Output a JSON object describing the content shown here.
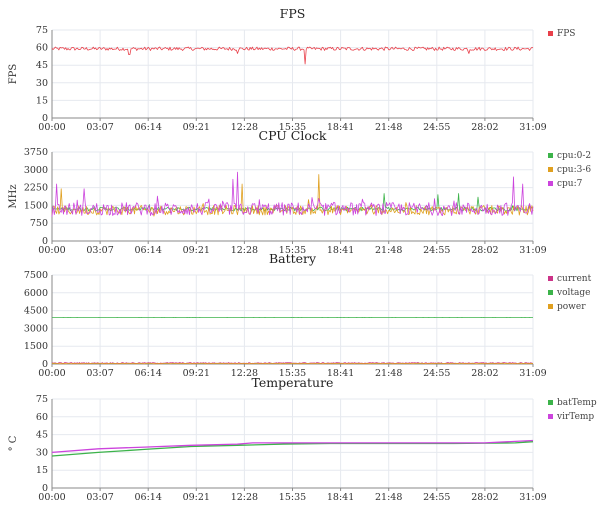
{
  "chart_data": [
    {
      "type": "line",
      "title": "FPS",
      "ylabel": "FPS",
      "ylim": [
        0,
        75
      ],
      "yticks": [
        0,
        15,
        30,
        45,
        60,
        75
      ],
      "xticks": [
        "00:00",
        "03:07",
        "06:14",
        "09:21",
        "12:28",
        "15:35",
        "18:41",
        "21:48",
        "24:55",
        "28:02",
        "31:09"
      ],
      "grid": true,
      "legend_position": "right",
      "series": [
        {
          "name": "FPS",
          "color": "#e8404a",
          "base": 59,
          "noise": 1.5,
          "spikes": [
            [
              16.4,
              46
            ],
            [
              5.0,
              54
            ],
            [
              12.0,
              55
            ],
            [
              27.0,
              55
            ]
          ]
        }
      ]
    },
    {
      "type": "line",
      "title": "CPU Clock",
      "ylabel": "MHz",
      "ylim": [
        0,
        3750
      ],
      "yticks": [
        0,
        750,
        1500,
        2250,
        3000,
        3750
      ],
      "xticks": [
        "00:00",
        "03:07",
        "06:14",
        "09:21",
        "12:28",
        "15:35",
        "18:41",
        "21:48",
        "24:55",
        "28:02",
        "31:09"
      ],
      "grid": true,
      "legend_position": "right",
      "series": [
        {
          "name": "cpu:0-2",
          "color": "#3cb34a",
          "base": 1350,
          "noise": 80,
          "spikes": [
            [
              21.5,
              2000
            ],
            [
              25.0,
              1950
            ],
            [
              26.3,
              2000
            ],
            [
              27.6,
              1850
            ]
          ]
        },
        {
          "name": "cpu:3-6",
          "color": "#e0a020",
          "base": 1300,
          "noise": 200,
          "spikes": [
            [
              17.3,
              2800
            ],
            [
              0.6,
              2200
            ],
            [
              12.3,
              2400
            ]
          ]
        },
        {
          "name": "cpu:7",
          "color": "#cc44dd",
          "base": 1350,
          "noise": 280,
          "spikes": [
            [
              0.3,
              2400
            ],
            [
              2.1,
              2200
            ],
            [
              11.7,
              2600
            ],
            [
              12.0,
              2900
            ],
            [
              29.9,
              2700
            ],
            [
              30.5,
              2400
            ]
          ]
        }
      ]
    },
    {
      "type": "line",
      "title": "Battery",
      "ylabel": "",
      "ylim": [
        0,
        7500
      ],
      "yticks": [
        0,
        1500,
        3000,
        4500,
        6000,
        7500
      ],
      "xticks": [
        "00:00",
        "03:07",
        "06:14",
        "09:21",
        "12:28",
        "15:35",
        "18:41",
        "21:48",
        "24:55",
        "28:02",
        "31:09"
      ],
      "grid": true,
      "legend_position": "right",
      "series": [
        {
          "name": "current",
          "color": "#cc3388",
          "base": 80,
          "noise": 40,
          "spikes": []
        },
        {
          "name": "voltage",
          "color": "#3cb34a",
          "base": 3920,
          "noise": 5,
          "spikes": []
        },
        {
          "name": "power",
          "color": "#e0a020",
          "base": 40,
          "noise": 20,
          "spikes": []
        }
      ]
    },
    {
      "type": "line",
      "title": "Temperature",
      "ylabel": "° C",
      "ylim": [
        0,
        75
      ],
      "yticks": [
        0,
        15,
        30,
        45,
        60,
        75
      ],
      "xticks": [
        "00:00",
        "03:07",
        "06:14",
        "09:21",
        "12:28",
        "15:35",
        "18:41",
        "21:48",
        "24:55",
        "28:02",
        "31:09"
      ],
      "grid": true,
      "legend_position": "right",
      "series": [
        {
          "name": "batTemp",
          "color": "#3cb34a",
          "points": [
            [
              0,
              27
            ],
            [
              3,
              30
            ],
            [
              6,
              32.5
            ],
            [
              9,
              35
            ],
            [
              12,
              36
            ],
            [
              15,
              37
            ],
            [
              18,
              37.5
            ],
            [
              22,
              37.5
            ],
            [
              26,
              37.5
            ],
            [
              30,
              38
            ],
            [
              31.15,
              39
            ]
          ]
        },
        {
          "name": "virTemp",
          "color": "#cc44dd",
          "points": [
            [
              0,
              30
            ],
            [
              3,
              33
            ],
            [
              6,
              34.5
            ],
            [
              9,
              36
            ],
            [
              12,
              37
            ],
            [
              13,
              38
            ],
            [
              16,
              38
            ],
            [
              20,
              38
            ],
            [
              24,
              38
            ],
            [
              28,
              38
            ],
            [
              31.15,
              40
            ]
          ]
        }
      ]
    }
  ]
}
